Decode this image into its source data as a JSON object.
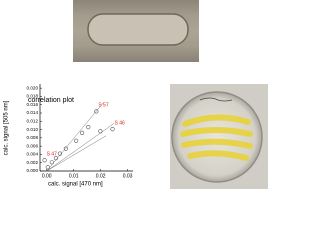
{
  "chart_data": {
    "type": "scatter",
    "title": "correlation plot",
    "x_label": "calc. signal [470 nm]",
    "y_label": "calc. signal [505 nm]",
    "xlim": [
      -0.0025,
      0.032
    ],
    "ylim": [
      0,
      0.021
    ],
    "xticks": [
      {
        "value": 0,
        "label": "0.00"
      },
      {
        "value": 0.01,
        "label": "0.01"
      },
      {
        "value": 0.02,
        "label": "0.02"
      },
      {
        "value": 0.03,
        "label": "0.03"
      }
    ],
    "yticks": [
      {
        "value": 0,
        "label": "0.000"
      },
      {
        "value": 0.002,
        "label": "0.002"
      },
      {
        "value": 0.004,
        "label": "0.004"
      },
      {
        "value": 0.006,
        "label": "0.006"
      },
      {
        "value": 0.008,
        "label": "0.008"
      },
      {
        "value": 0.01,
        "label": "0.010"
      },
      {
        "value": 0.012,
        "label": "0.012"
      },
      {
        "value": 0.014,
        "label": "0.014"
      },
      {
        "value": 0.016,
        "label": "0.016"
      },
      {
        "value": 0.018,
        "label": "0.018"
      },
      {
        "value": 0.02,
        "label": "0.020"
      }
    ],
    "series": [
      {
        "color": "#555555",
        "x": [
          -0.0008,
          0.0004,
          0.0019,
          0.0034,
          0.0049,
          0.0071,
          0.0109,
          0.0131,
          0.0154,
          0.0184,
          0.0199,
          0.0244
        ],
        "y": [
          0.0026,
          0.0009,
          0.0021,
          0.0031,
          0.0042,
          0.0054,
          0.0073,
          0.0092,
          0.0106,
          0.0144,
          0.0096,
          0.0101
        ]
      }
    ],
    "lines": [
      {
        "x": [
          0,
          0.021
        ],
        "y": [
          0,
          0.0165
        ]
      },
      {
        "x": [
          0,
          0.025
        ],
        "y": [
          0,
          0.0115
        ]
      },
      {
        "x": [
          0,
          0.022
        ],
        "y": [
          0,
          0.0085
        ]
      }
    ],
    "annotations": [
      {
        "text": "S 57",
        "x": 0.0184,
        "y": 0.0144
      },
      {
        "text": "S 46",
        "x": 0.0244,
        "y": 0.0101
      },
      {
        "text": "S 47",
        "x": -0.0008,
        "y": 0.0026
      }
    ],
    "annotation_color": "#e02020"
  }
}
